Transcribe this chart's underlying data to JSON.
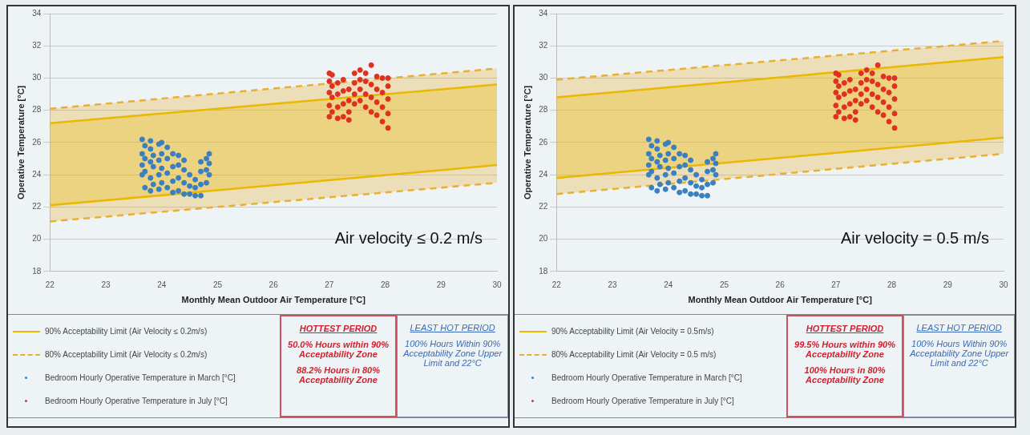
{
  "chart_data": [
    {
      "type": "scatter",
      "xlabel": "Monthly Mean Outdoor Air Temperature [°C]",
      "ylabel": "Operative Temperature [°C]",
      "xlim": [
        22,
        30
      ],
      "xticks": [
        22,
        23,
        24,
        25,
        26,
        27,
        28,
        29,
        30
      ],
      "ylim": [
        18,
        34
      ],
      "yticks": [
        18,
        20,
        22,
        24,
        26,
        28,
        30,
        32,
        34
      ],
      "grid": "y",
      "legend": "bottom",
      "marker": "circle",
      "annotations": [
        "Air velocity ≤ 0.2 m/s",
        "HOTTEST PERIOD",
        "50.0% Hours within 90% Acceptability Zone",
        "88.2% Hours in 80% Acceptability Zone",
        "LEAST HOT PERIOD",
        "100% Hours Within 90% Acceptability Zone Upper Limit and 22°C"
      ],
      "series": [
        {
          "name": "90% Acceptability Limit (Air Velocity ≤ 0.2m/s)",
          "type": "line",
          "color": "#eab800",
          "line_style": "solid",
          "marker": "none",
          "x": [
            22,
            30
          ],
          "values": [
            27.2,
            29.6
          ],
          "lower": [
            22.1,
            24.6
          ],
          "upper": [
            27.2,
            29.6
          ]
        },
        {
          "type": "line",
          "color": "#eab800",
          "line_style": "solid",
          "marker": "none",
          "x": [
            22,
            30
          ],
          "values": [
            22.1,
            24.6
          ]
        },
        {
          "name": "80% Acceptability Limit (Air Velocity ≤ 0.2m/s)",
          "type": "line",
          "color": "#e8b030",
          "line_style": "dashed",
          "marker": "none",
          "x": [
            22,
            30
          ],
          "values": [
            28.1,
            30.6
          ],
          "lower": [
            21.1,
            23.5
          ],
          "upper": [
            28.1,
            30.6
          ]
        },
        {
          "type": "line",
          "color": "#e8b030",
          "line_style": "dashed",
          "marker": "none",
          "x": [
            22,
            30
          ],
          "values": [
            21.1,
            23.5
          ]
        },
        {
          "name": "Bedroom Hourly Operative Temperature in March [°C]",
          "color": "#3a7fc0",
          "x": [
            23.65,
            23.65,
            23.65,
            23.65,
            23.7,
            23.7,
            23.7,
            23.7,
            23.8,
            23.8,
            23.8,
            23.8,
            23.8,
            23.85,
            23.85,
            23.85,
            23.95,
            23.95,
            23.95,
            23.95,
            24.0,
            24.0,
            24.0,
            24.0,
            24.1,
            24.1,
            24.1,
            24.1,
            24.2,
            24.2,
            24.2,
            24.2,
            24.3,
            24.3,
            24.3,
            24.3,
            24.4,
            24.4,
            24.4,
            24.4,
            24.5,
            24.5,
            24.5,
            24.6,
            24.6,
            24.6,
            24.7,
            24.7,
            24.7,
            24.7,
            24.8,
            24.8,
            24.8,
            24.85,
            24.85,
            24.85
          ],
          "values": [
            24.0,
            24.6,
            25.3,
            26.2,
            23.2,
            24.2,
            25.0,
            25.8,
            23.0,
            23.8,
            24.8,
            25.6,
            26.1,
            23.4,
            24.5,
            25.2,
            23.1,
            24.0,
            24.9,
            25.9,
            23.5,
            24.4,
            25.3,
            26.0,
            23.2,
            24.1,
            25.0,
            25.7,
            22.9,
            23.6,
            24.5,
            25.3,
            23.0,
            23.8,
            24.6,
            25.2,
            22.8,
            23.5,
            24.3,
            24.9,
            22.8,
            23.3,
            24.0,
            22.7,
            23.2,
            23.7,
            22.7,
            23.4,
            24.2,
            24.8,
            23.5,
            24.3,
            25.0,
            24.0,
            24.7,
            25.3
          ]
        },
        {
          "name": "Bedroom Hourly Operative Temperature in July [°C]",
          "color": "#e03020",
          "x": [
            27.0,
            27.0,
            27.0,
            27.0,
            27.0,
            27.05,
            27.05,
            27.05,
            27.05,
            27.15,
            27.15,
            27.15,
            27.15,
            27.25,
            27.25,
            27.25,
            27.25,
            27.35,
            27.35,
            27.35,
            27.35,
            27.45,
            27.45,
            27.45,
            27.45,
            27.55,
            27.55,
            27.55,
            27.55,
            27.65,
            27.65,
            27.65,
            27.65,
            27.75,
            27.75,
            27.75,
            27.75,
            27.85,
            27.85,
            27.85,
            27.85,
            27.95,
            27.95,
            27.95,
            27.95,
            28.05,
            28.05,
            28.05,
            28.05,
            28.05
          ],
          "values": [
            27.6,
            28.3,
            29.1,
            29.8,
            30.3,
            27.9,
            28.8,
            29.5,
            30.2,
            27.5,
            28.2,
            29.0,
            29.7,
            27.6,
            28.4,
            29.2,
            29.9,
            27.4,
            27.9,
            28.6,
            29.3,
            28.4,
            29.0,
            29.7,
            30.3,
            28.6,
            29.3,
            29.9,
            30.5,
            28.2,
            29.0,
            29.8,
            30.3,
            27.9,
            28.8,
            29.6,
            30.8,
            27.7,
            28.5,
            29.3,
            30.1,
            27.3,
            28.2,
            29.1,
            30.0,
            26.9,
            27.8,
            28.7,
            29.5,
            30.0
          ]
        }
      ]
    },
    {
      "type": "scatter",
      "xlabel": "Monthly Mean Outdoor Air Temperature [°C]",
      "ylabel": "Operative Temperature [°C]",
      "xlim": [
        22,
        30
      ],
      "xticks": [
        22,
        23,
        24,
        25,
        26,
        27,
        28,
        29,
        30
      ],
      "ylim": [
        18,
        34
      ],
      "yticks": [
        18,
        20,
        22,
        24,
        26,
        28,
        30,
        32,
        34
      ],
      "grid": "y",
      "legend": "bottom",
      "marker": "circle",
      "annotations": [
        "Air velocity = 0.5 m/s",
        "HOTTEST PERIOD",
        "99.5% Hours within 90% Acceptability Zone",
        "100% Hours in 80% Acceptability Zone",
        "LEAST HOT PERIOD",
        "100% Hours Within 90% Acceptability Zone Upper Limit and 22°C"
      ],
      "series": [
        {
          "name": "90% Acceptability Limit (Air Velocity = 0.5m/s)",
          "type": "line",
          "color": "#eab800",
          "line_style": "solid",
          "marker": "none",
          "x": [
            22,
            30
          ],
          "values": [
            28.8,
            31.3
          ],
          "lower": [
            23.8,
            26.3
          ],
          "upper": [
            28.8,
            31.3
          ]
        },
        {
          "type": "line",
          "color": "#eab800",
          "line_style": "solid",
          "marker": "none",
          "x": [
            22,
            30
          ],
          "values": [
            23.8,
            26.3
          ]
        },
        {
          "name": "80% Acceptability Limit (Air Velocity = 0.5 m/s)",
          "type": "line",
          "color": "#e8b030",
          "line_style": "dashed",
          "marker": "none",
          "x": [
            22,
            30
          ],
          "values": [
            29.9,
            32.3
          ],
          "lower": [
            22.8,
            25.3
          ],
          "upper": [
            29.9,
            32.3
          ]
        },
        {
          "type": "line",
          "color": "#e8b030",
          "line_style": "dashed",
          "marker": "none",
          "x": [
            22,
            30
          ],
          "values": [
            22.8,
            25.3
          ]
        },
        {
          "name": "Bedroom Hourly Operative Temperature in March [°C]",
          "color": "#3a7fc0",
          "x": [
            23.65,
            23.65,
            23.65,
            23.65,
            23.7,
            23.7,
            23.7,
            23.7,
            23.8,
            23.8,
            23.8,
            23.8,
            23.8,
            23.85,
            23.85,
            23.85,
            23.95,
            23.95,
            23.95,
            23.95,
            24.0,
            24.0,
            24.0,
            24.0,
            24.1,
            24.1,
            24.1,
            24.1,
            24.2,
            24.2,
            24.2,
            24.2,
            24.3,
            24.3,
            24.3,
            24.3,
            24.4,
            24.4,
            24.4,
            24.4,
            24.5,
            24.5,
            24.5,
            24.6,
            24.6,
            24.6,
            24.7,
            24.7,
            24.7,
            24.7,
            24.8,
            24.8,
            24.8,
            24.85,
            24.85,
            24.85
          ],
          "values": [
            24.0,
            24.6,
            25.3,
            26.2,
            23.2,
            24.2,
            25.0,
            25.8,
            23.0,
            23.8,
            24.8,
            25.6,
            26.1,
            23.4,
            24.5,
            25.2,
            23.1,
            24.0,
            24.9,
            25.9,
            23.5,
            24.4,
            25.3,
            26.0,
            23.2,
            24.1,
            25.0,
            25.7,
            22.9,
            23.6,
            24.5,
            25.3,
            23.0,
            23.8,
            24.6,
            25.2,
            22.8,
            23.5,
            24.3,
            24.9,
            22.8,
            23.3,
            24.0,
            22.7,
            23.2,
            23.7,
            22.7,
            23.4,
            24.2,
            24.8,
            23.5,
            24.3,
            25.0,
            24.0,
            24.7,
            25.3
          ]
        },
        {
          "name": "Bedroom Hourly Operative Temperature in July [°C]",
          "color": "#e03020",
          "x": [
            27.0,
            27.0,
            27.0,
            27.0,
            27.0,
            27.05,
            27.05,
            27.05,
            27.05,
            27.15,
            27.15,
            27.15,
            27.15,
            27.25,
            27.25,
            27.25,
            27.25,
            27.35,
            27.35,
            27.35,
            27.35,
            27.45,
            27.45,
            27.45,
            27.45,
            27.55,
            27.55,
            27.55,
            27.55,
            27.65,
            27.65,
            27.65,
            27.65,
            27.75,
            27.75,
            27.75,
            27.75,
            27.85,
            27.85,
            27.85,
            27.85,
            27.95,
            27.95,
            27.95,
            27.95,
            28.05,
            28.05,
            28.05,
            28.05,
            28.05
          ],
          "values": [
            27.6,
            28.3,
            29.1,
            29.8,
            30.3,
            27.9,
            28.8,
            29.5,
            30.2,
            27.5,
            28.2,
            29.0,
            29.7,
            27.6,
            28.4,
            29.2,
            29.9,
            27.4,
            27.9,
            28.6,
            29.3,
            28.4,
            29.0,
            29.7,
            30.3,
            28.6,
            29.3,
            29.9,
            30.5,
            28.2,
            29.0,
            29.8,
            30.3,
            27.9,
            28.8,
            29.6,
            30.8,
            27.7,
            28.5,
            29.3,
            30.1,
            27.3,
            28.2,
            29.1,
            30.0,
            26.9,
            27.8,
            28.7,
            29.5,
            30.0
          ]
        }
      ]
    }
  ]
}
